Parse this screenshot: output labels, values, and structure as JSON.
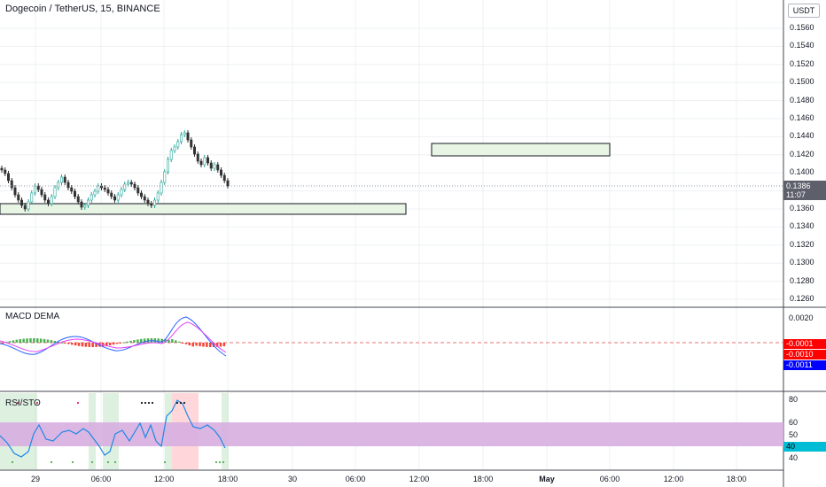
{
  "header": {
    "title": "Dogecoin / TetherUS, 15, BINANCE",
    "currency_button": "USDT"
  },
  "price_axis": {
    "ticks": [
      "0.1560",
      "0.1540",
      "0.1520",
      "0.1500",
      "0.1480",
      "0.1460",
      "0.1440",
      "0.1420",
      "0.1400",
      "0.1380",
      "0.1360",
      "0.1340",
      "0.1320",
      "0.1300",
      "0.1280",
      "0.1260"
    ],
    "current_price": "0.1386",
    "countdown": "11:07"
  },
  "time_axis": {
    "ticks": [
      "29",
      "06:00",
      "12:00",
      "18:00",
      "30",
      "06:00",
      "12:00",
      "18:00",
      "May",
      "06:00",
      "12:00",
      "18:00"
    ]
  },
  "macd": {
    "label": "MACD DEMA",
    "axis_tick": "0.0020",
    "values": [
      "-0.0001",
      "-0.0010",
      "-0.0011"
    ],
    "colors": [
      "#ff0000",
      "#ff0000",
      "#0000ff"
    ]
  },
  "rsi": {
    "label": "RSI/STO",
    "axis_ticks": [
      "80",
      "60",
      "50",
      "40"
    ],
    "current_value": "40",
    "band_color": "#d7aee0",
    "value_color": "#00bcd4"
  },
  "colors": {
    "zone_fill": "#e8f5e5",
    "zone_border": "#131722",
    "grid": "#e9ecf1",
    "candle_up": "#26a69a",
    "candle_down": "#333333"
  },
  "chart_data": {
    "type": "candlestick",
    "title": "Dogecoin / TetherUS, 15, BINANCE",
    "ylim": [
      0.125,
      0.1575
    ],
    "last_price": 0.1386,
    "zones": [
      {
        "price_low": 0.1357,
        "price_high": 0.1362
      },
      {
        "price_low": 0.1425,
        "price_high": 0.1432
      }
    ]
  }
}
